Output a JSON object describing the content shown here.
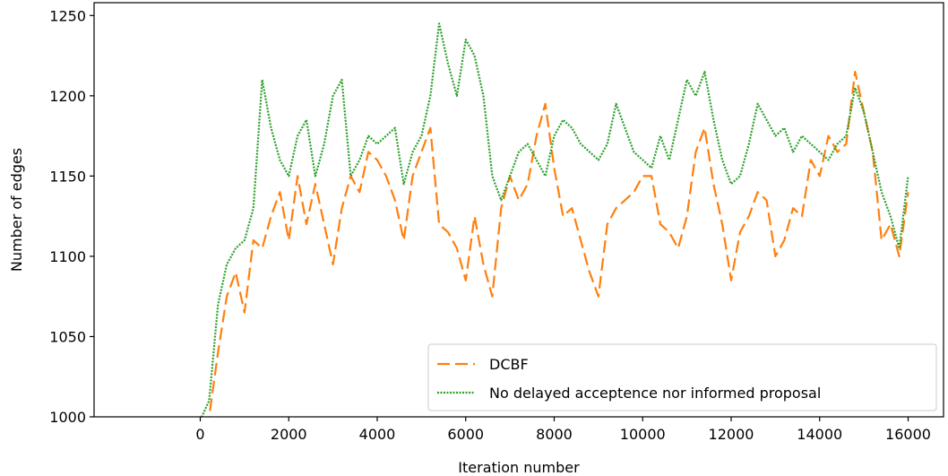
{
  "chart_data": {
    "type": "line",
    "title": "",
    "xlabel": "Iteration number",
    "ylabel": "Number of edges",
    "xlim": [
      -2400,
      16800
    ],
    "ylim": [
      1000,
      1258
    ],
    "xticks": [
      0,
      2000,
      4000,
      6000,
      8000,
      10000,
      12000,
      14000,
      16000
    ],
    "yticks": [
      1000,
      1050,
      1100,
      1150,
      1200,
      1250
    ],
    "xtick_labels": [
      "0",
      "2000",
      "4000",
      "6000",
      "8000",
      "10000",
      "12000",
      "14000",
      "16000"
    ],
    "ytick_labels": [
      "1000",
      "1050",
      "1100",
      "1150",
      "1200",
      "1250"
    ],
    "grid": false,
    "legend": {
      "position": "lower-right"
    },
    "series": [
      {
        "name": "DCBF",
        "color": "#ff7f0e",
        "linestyle": "dashed",
        "x": [
          0,
          200,
          400,
          600,
          800,
          1000,
          1200,
          1400,
          1600,
          1800,
          2000,
          2200,
          2400,
          2600,
          2800,
          3000,
          3200,
          3400,
          3600,
          3800,
          4000,
          4200,
          4400,
          4600,
          4800,
          5000,
          5200,
          5400,
          5600,
          5800,
          6000,
          6200,
          6400,
          6600,
          6800,
          7000,
          7200,
          7400,
          7600,
          7800,
          8000,
          8200,
          8400,
          8600,
          8800,
          9000,
          9200,
          9400,
          9600,
          9800,
          10000,
          10200,
          10400,
          10600,
          10800,
          11000,
          11200,
          11400,
          11600,
          11800,
          12000,
          12200,
          12400,
          12600,
          12800,
          13000,
          13200,
          13400,
          13600,
          13800,
          14000,
          14200,
          14400,
          14600,
          14800,
          15000,
          15200,
          15400,
          15600,
          15800,
          16000
        ],
        "y": [
          995,
          1000,
          1040,
          1075,
          1090,
          1065,
          1110,
          1105,
          1125,
          1140,
          1110,
          1150,
          1120,
          1145,
          1120,
          1095,
          1130,
          1150,
          1140,
          1165,
          1160,
          1150,
          1135,
          1110,
          1150,
          1165,
          1180,
          1120,
          1115,
          1105,
          1085,
          1125,
          1095,
          1075,
          1130,
          1150,
          1135,
          1145,
          1175,
          1195,
          1155,
          1125,
          1130,
          1110,
          1090,
          1075,
          1120,
          1130,
          1135,
          1140,
          1150,
          1150,
          1120,
          1115,
          1105,
          1125,
          1165,
          1180,
          1145,
          1120,
          1085,
          1115,
          1125,
          1140,
          1135,
          1100,
          1110,
          1130,
          1125,
          1160,
          1150,
          1175,
          1165,
          1170,
          1215,
          1190,
          1165,
          1110,
          1120,
          1100,
          1140
        ]
      },
      {
        "name": "No delayed acceptence nor informed proposal",
        "color": "#2ca02c",
        "linestyle": "dotted",
        "x": [
          0,
          200,
          400,
          600,
          800,
          1000,
          1200,
          1400,
          1600,
          1800,
          2000,
          2200,
          2400,
          2600,
          2800,
          3000,
          3200,
          3400,
          3600,
          3800,
          4000,
          4200,
          4400,
          4600,
          4800,
          5000,
          5200,
          5400,
          5600,
          5800,
          6000,
          6200,
          6400,
          6600,
          6800,
          7000,
          7200,
          7400,
          7600,
          7800,
          8000,
          8200,
          8400,
          8600,
          8800,
          9000,
          9200,
          9400,
          9600,
          9800,
          10000,
          10200,
          10400,
          10600,
          10800,
          11000,
          11200,
          11400,
          11600,
          11800,
          12000,
          12200,
          12400,
          12600,
          12800,
          13000,
          13200,
          13400,
          13600,
          13800,
          14000,
          14200,
          14400,
          14600,
          14800,
          15000,
          15200,
          15400,
          15600,
          15800,
          16000
        ],
        "y": [
          998,
          1010,
          1070,
          1095,
          1105,
          1110,
          1130,
          1210,
          1180,
          1160,
          1150,
          1175,
          1185,
          1150,
          1170,
          1200,
          1210,
          1150,
          1160,
          1175,
          1170,
          1175,
          1180,
          1145,
          1165,
          1175,
          1200,
          1245,
          1220,
          1200,
          1235,
          1225,
          1200,
          1150,
          1135,
          1150,
          1165,
          1170,
          1160,
          1150,
          1175,
          1185,
          1180,
          1170,
          1165,
          1160,
          1170,
          1195,
          1180,
          1165,
          1160,
          1155,
          1175,
          1160,
          1185,
          1210,
          1200,
          1215,
          1185,
          1160,
          1145,
          1150,
          1170,
          1195,
          1185,
          1175,
          1180,
          1165,
          1175,
          1170,
          1165,
          1160,
          1170,
          1175,
          1205,
          1190,
          1165,
          1140,
          1125,
          1105,
          1150
        ]
      }
    ]
  }
}
